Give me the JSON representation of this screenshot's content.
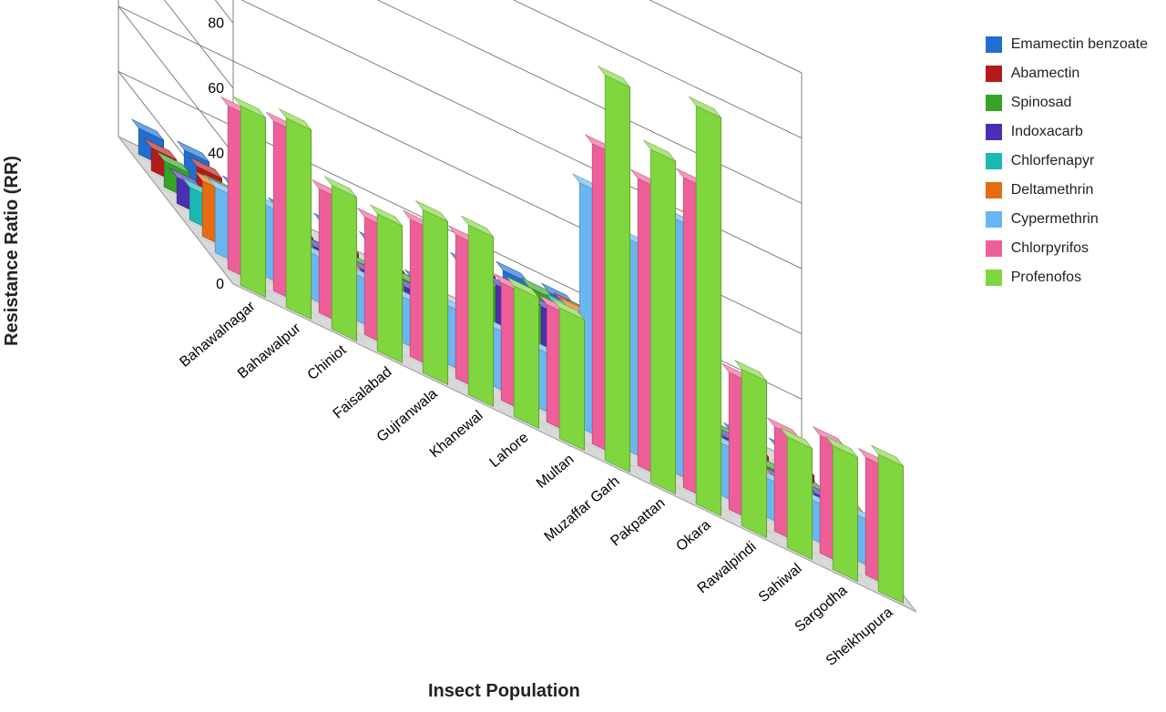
{
  "chart": {
    "type": "3d-grouped-bar",
    "y_axis": {
      "label": "Resistance Ratio (RR)",
      "min": 0,
      "max": 120,
      "tick_step": 20,
      "tick_color": "#000000",
      "tick_fontsize": 16,
      "label_fontsize": 20,
      "label_fontweight": 700
    },
    "x_axis": {
      "label": "Insect Population",
      "label_fontsize": 20,
      "label_fontweight": 700,
      "tick_fontsize": 16,
      "tick_angle_deg": -40
    },
    "background_color": "#ffffff",
    "wall_line_color": "#7f7f7f",
    "floor_color": "#d9d9d9",
    "categories": [
      "Bahawalnagar",
      "Bahawalpur",
      "Chiniot",
      "Faisalabad",
      "Gujranwala",
      "Khanewal",
      "Lahore",
      "Multan",
      "Muzaffar Garh",
      "Pakpattan",
      "Okara",
      "Rawalpindi",
      "Sahiwal",
      "Sargodha",
      "Sheikhupura"
    ],
    "series": [
      {
        "name": "Emamectin benzoate",
        "color": "#1f6fd1",
        "values": [
          8,
          8,
          4,
          4,
          6,
          7,
          2,
          14,
          18,
          18,
          7,
          1,
          5,
          2,
          4
        ]
      },
      {
        "name": "Abamectin",
        "color": "#b31b1b",
        "values": [
          7,
          8,
          4,
          3,
          5,
          6,
          2,
          18,
          18,
          20,
          7,
          2,
          3,
          3,
          4
        ]
      },
      {
        "name": "Spinosad",
        "color": "#34a327",
        "values": [
          8,
          8,
          5,
          4,
          5,
          7,
          3,
          18,
          23,
          23,
          9,
          2,
          7,
          3,
          3
        ]
      },
      {
        "name": "Indoxacarb",
        "color": "#4b2fb0",
        "values": [
          8,
          10,
          6,
          7,
          7,
          8,
          6,
          22,
          22,
          22,
          12,
          5,
          9,
          4,
          5
        ]
      },
      {
        "name": "Chlorfenapyr",
        "color": "#1cb8b3",
        "values": [
          10,
          10,
          8,
          7,
          7,
          9,
          8,
          14,
          28,
          25,
          28,
          4,
          6,
          4,
          8
        ]
      },
      {
        "name": "Deltamethrin",
        "color": "#e66b12",
        "values": [
          17,
          14,
          10,
          12,
          10,
          12,
          12,
          14,
          32,
          28,
          32,
          12,
          10,
          6,
          12
        ]
      },
      {
        "name": "Cypermethrin",
        "color": "#6ab6f0",
        "values": [
          20,
          22,
          14,
          14,
          14,
          18,
          18,
          18,
          75,
          65,
          78,
          16,
          12,
          12,
          14
        ]
      },
      {
        "name": "Chlorpyrifos",
        "color": "#ee5f9a",
        "values": [
          50,
          52,
          38,
          36,
          42,
          44,
          36,
          36,
          92,
          88,
          95,
          42,
          32,
          36,
          36
        ]
      },
      {
        "name": "Profenofos",
        "color": "#7fd63f",
        "values": [
          55,
          58,
          44,
          42,
          50,
          52,
          40,
          40,
          118,
          102,
          122,
          48,
          34,
          38,
          42
        ]
      }
    ],
    "bar_width": 0.55,
    "bar_depth": 0.55,
    "legend_position": "right"
  }
}
